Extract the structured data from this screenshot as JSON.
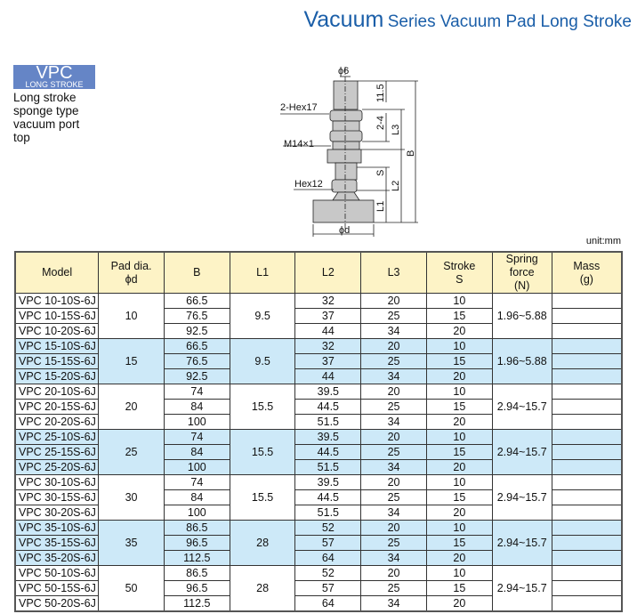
{
  "header": {
    "title_big": "Vacuum",
    "title_rest": "Series Vacuum Pad Long Stroke"
  },
  "badge": {
    "main": "VPC",
    "sub": "LONG STROKE"
  },
  "description": [
    "Long stroke",
    "sponge type",
    "vacuum port",
    "top"
  ],
  "diagram": {
    "labels": {
      "tube": "ϕ6",
      "hex17": "2-Hex17",
      "thread": "M14×1",
      "hex12": "Hex12",
      "pad": "ϕd",
      "d115": "11.5",
      "d24": "2-4",
      "l3": "L3",
      "b": "B",
      "s": "S",
      "l2": "L2",
      "l1": "L1"
    },
    "colors": {
      "body": "#c8c8c8",
      "line": "#222"
    }
  },
  "unit": "unit:mm",
  "table": {
    "headers": [
      [
        "Model"
      ],
      [
        "Pad dia.",
        "ϕd"
      ],
      [
        "B"
      ],
      [
        "L1"
      ],
      [
        "L2"
      ],
      [
        "L3"
      ],
      [
        "Stroke",
        "S"
      ],
      [
        "Spring force",
        "(N)"
      ],
      [
        "Mass",
        "(g)"
      ]
    ],
    "colors": {
      "header": "#fdf3c6",
      "alt": "#cde9f8"
    },
    "groups": [
      {
        "pad": "10",
        "l1": "9.5",
        "spring": "1.96~5.88",
        "rows": [
          {
            "model": "VPC 10-10S-6J",
            "b": "66.5",
            "l2": "32",
            "l3": "20",
            "s": "10"
          },
          {
            "model": "VPC 10-15S-6J",
            "b": "76.5",
            "l2": "37",
            "l3": "25",
            "s": "15"
          },
          {
            "model": "VPC 10-20S-6J",
            "b": "92.5",
            "l2": "44",
            "l3": "34",
            "s": "20"
          }
        ]
      },
      {
        "pad": "15",
        "l1": "9.5",
        "spring": "1.96~5.88",
        "rows": [
          {
            "model": "VPC 15-10S-6J",
            "b": "66.5",
            "l2": "32",
            "l3": "20",
            "s": "10"
          },
          {
            "model": "VPC 15-15S-6J",
            "b": "76.5",
            "l2": "37",
            "l3": "25",
            "s": "15"
          },
          {
            "model": "VPC 15-20S-6J",
            "b": "92.5",
            "l2": "44",
            "l3": "34",
            "s": "20"
          }
        ]
      },
      {
        "pad": "20",
        "l1": "15.5",
        "spring": "2.94~15.7",
        "rows": [
          {
            "model": "VPC 20-10S-6J",
            "b": "74",
            "l2": "39.5",
            "l3": "20",
            "s": "10"
          },
          {
            "model": "VPC 20-15S-6J",
            "b": "84",
            "l2": "44.5",
            "l3": "25",
            "s": "15"
          },
          {
            "model": "VPC 20-20S-6J",
            "b": "100",
            "l2": "51.5",
            "l3": "34",
            "s": "20"
          }
        ]
      },
      {
        "pad": "25",
        "l1": "15.5",
        "spring": "2.94~15.7",
        "rows": [
          {
            "model": "VPC 25-10S-6J",
            "b": "74",
            "l2": "39.5",
            "l3": "20",
            "s": "10"
          },
          {
            "model": "VPC 25-15S-6J",
            "b": "84",
            "l2": "44.5",
            "l3": "25",
            "s": "15"
          },
          {
            "model": "VPC 25-20S-6J",
            "b": "100",
            "l2": "51.5",
            "l3": "34",
            "s": "20"
          }
        ]
      },
      {
        "pad": "30",
        "l1": "15.5",
        "spring": "2.94~15.7",
        "rows": [
          {
            "model": "VPC 30-10S-6J",
            "b": "74",
            "l2": "39.5",
            "l3": "20",
            "s": "10"
          },
          {
            "model": "VPC 30-15S-6J",
            "b": "84",
            "l2": "44.5",
            "l3": "25",
            "s": "15"
          },
          {
            "model": "VPC 30-20S-6J",
            "b": "100",
            "l2": "51.5",
            "l3": "34",
            "s": "20"
          }
        ]
      },
      {
        "pad": "35",
        "l1": "28",
        "spring": "2.94~15.7",
        "rows": [
          {
            "model": "VPC 35-10S-6J",
            "b": "86.5",
            "l2": "52",
            "l3": "20",
            "s": "10"
          },
          {
            "model": "VPC 35-15S-6J",
            "b": "96.5",
            "l2": "57",
            "l3": "25",
            "s": "15"
          },
          {
            "model": "VPC 35-20S-6J",
            "b": "112.5",
            "l2": "64",
            "l3": "34",
            "s": "20"
          }
        ]
      },
      {
        "pad": "50",
        "l1": "28",
        "spring": "2.94~15.7",
        "rows": [
          {
            "model": "VPC 50-10S-6J",
            "b": "86.5",
            "l2": "52",
            "l3": "20",
            "s": "10"
          },
          {
            "model": "VPC 50-15S-6J",
            "b": "96.5",
            "l2": "57",
            "l3": "25",
            "s": "15"
          },
          {
            "model": "VPC 50-20S-6J",
            "b": "112.5",
            "l2": "64",
            "l3": "34",
            "s": "20"
          }
        ]
      }
    ]
  }
}
